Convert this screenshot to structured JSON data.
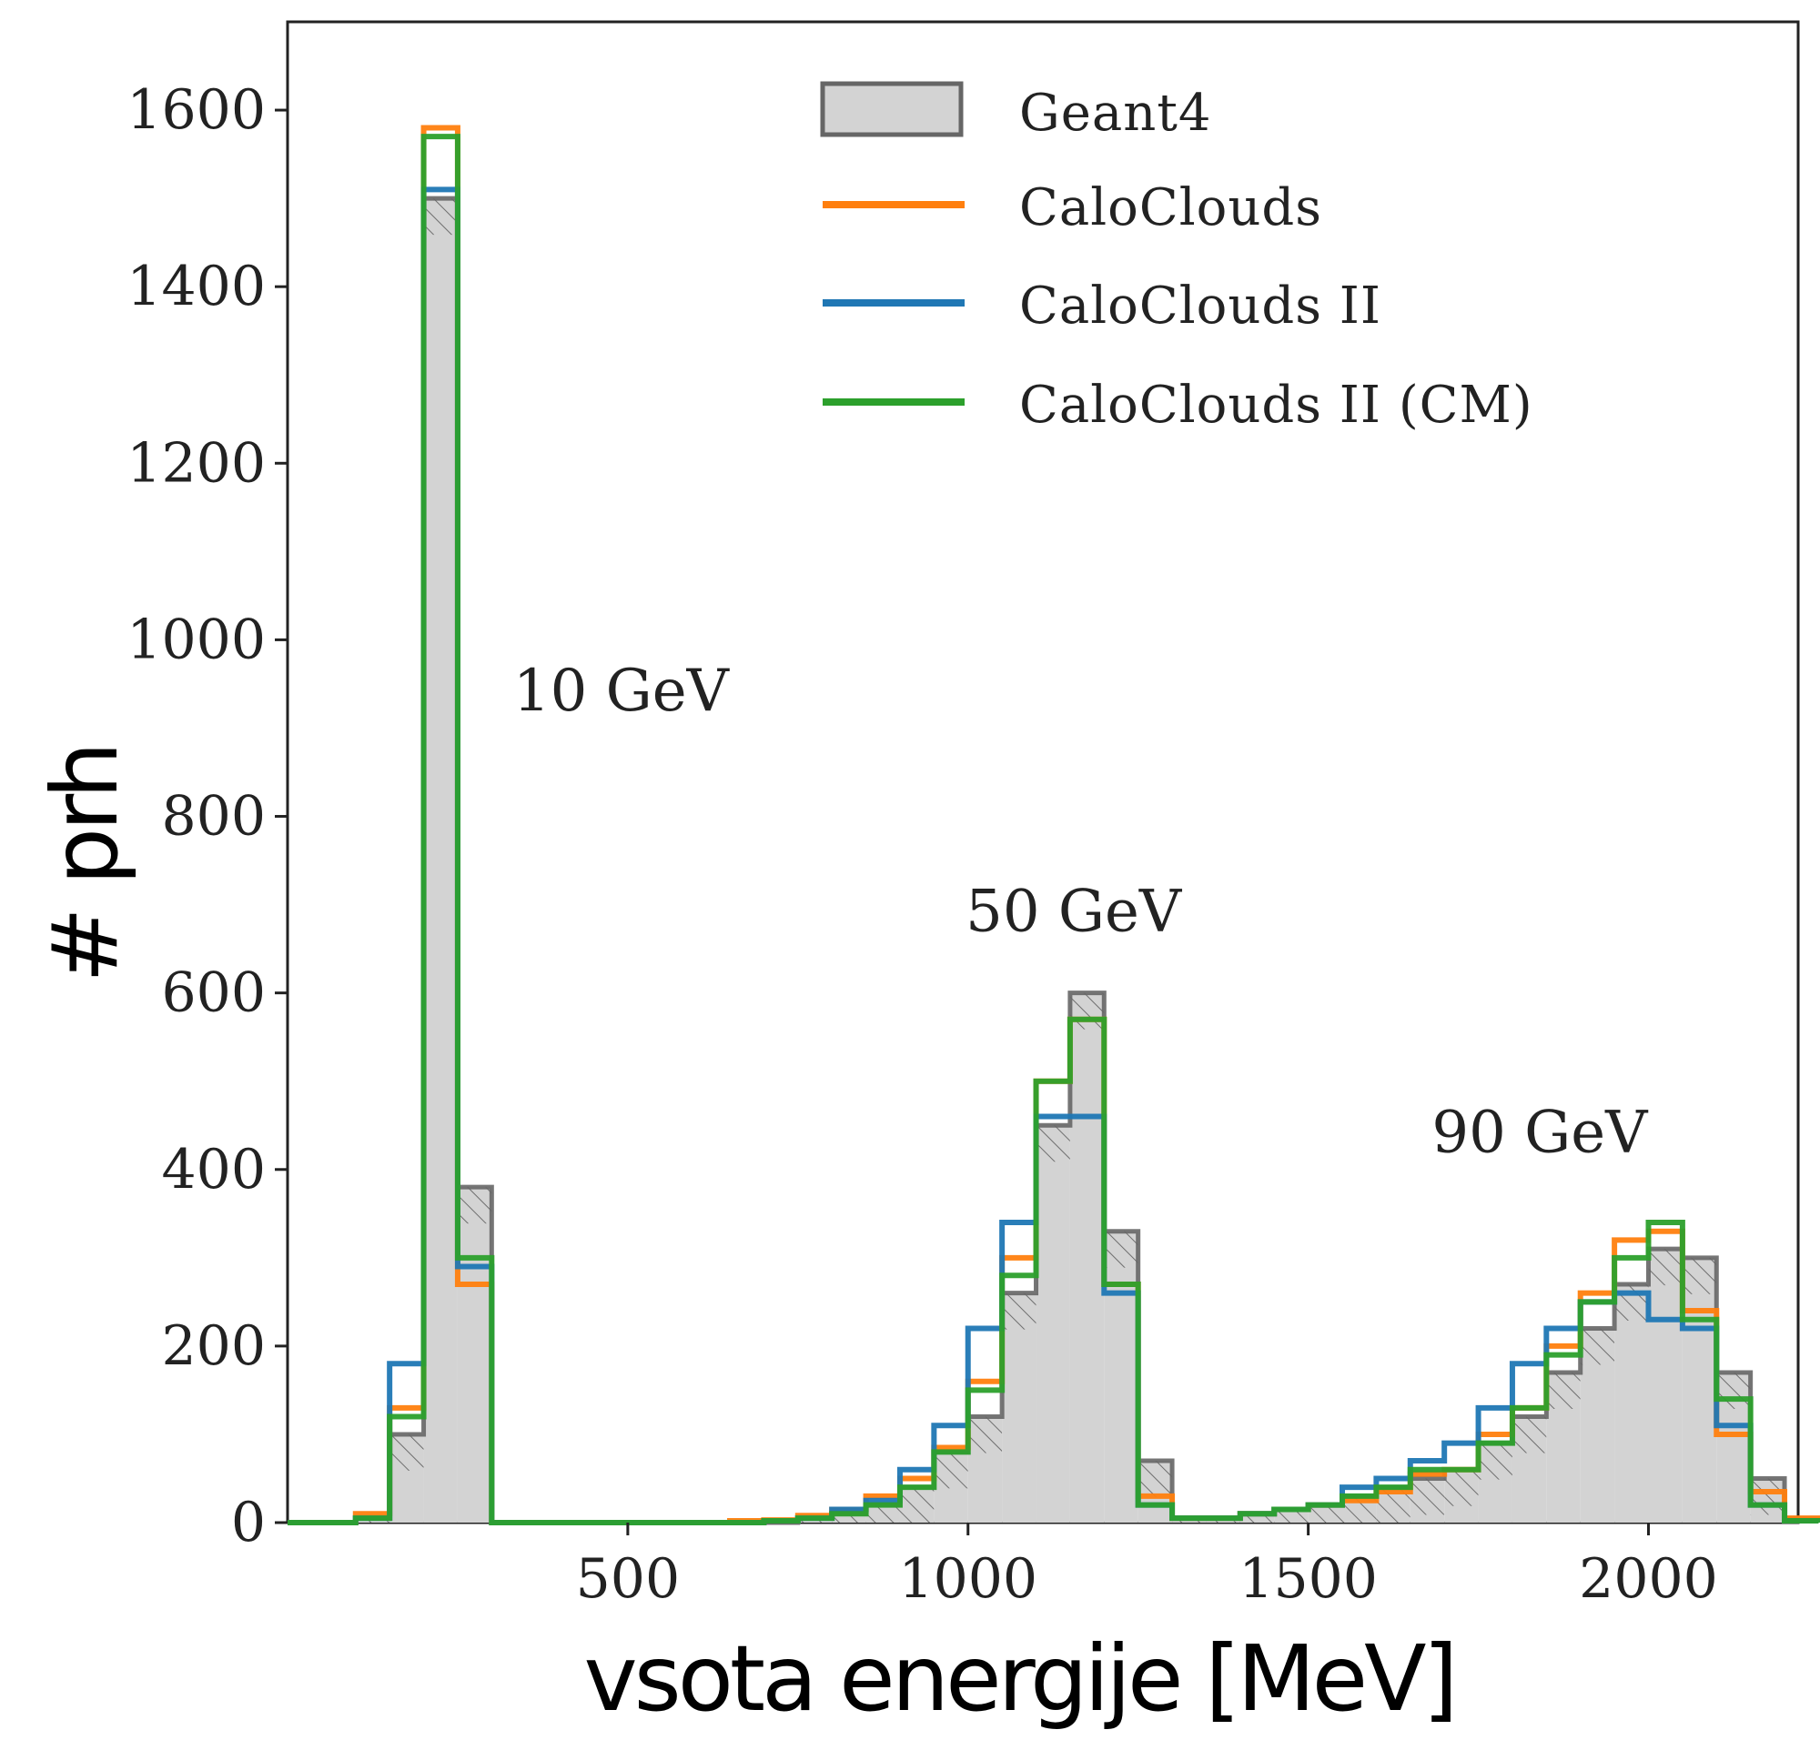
{
  "chart_data": {
    "type": "histogram",
    "xlabel": "vsota energije [MeV]",
    "ylabel": "# prh",
    "xlim": [
      0,
      2220
    ],
    "ylim": [
      0,
      1700
    ],
    "xticks": [
      500,
      1000,
      1500,
      2000
    ],
    "yticks": [
      0,
      200,
      400,
      600,
      800,
      1000,
      1200,
      1400,
      1600
    ],
    "grid": false,
    "legend_position": "top-right",
    "bin_width": 50,
    "bin_start": 0,
    "annotations": [
      {
        "text": "10 GeV",
        "x": 490,
        "y": 920
      },
      {
        "text": "50 GeV",
        "x": 1155,
        "y": 670
      },
      {
        "text": "90 GeV",
        "x": 1840,
        "y": 420
      }
    ],
    "series": [
      {
        "name": "Geant4",
        "style": "filled-hatched",
        "color": "#666666",
        "fill": "#d3d3d3",
        "values": [
          0,
          0,
          5,
          100,
          1500,
          380,
          0,
          0,
          0,
          0,
          0,
          0,
          0,
          0,
          0,
          5,
          10,
          20,
          40,
          80,
          120,
          260,
          450,
          600,
          330,
          70,
          5,
          5,
          10,
          15,
          20,
          30,
          40,
          50,
          60,
          90,
          120,
          170,
          220,
          270,
          310,
          300,
          170,
          50,
          5
        ]
      },
      {
        "name": "CaloClouds",
        "style": "step",
        "color": "#ff7f0e",
        "values": [
          0,
          0,
          10,
          130,
          1580,
          270,
          0,
          0,
          0,
          0,
          0,
          0,
          0,
          2,
          3,
          8,
          15,
          30,
          50,
          85,
          160,
          300,
          500,
          570,
          270,
          30,
          5,
          5,
          10,
          15,
          20,
          25,
          35,
          55,
          60,
          100,
          130,
          200,
          260,
          320,
          330,
          240,
          100,
          35,
          5
        ]
      },
      {
        "name": "CaloClouds II",
        "style": "step",
        "color": "#1f77b4",
        "values": [
          0,
          0,
          5,
          180,
          1510,
          290,
          0,
          0,
          0,
          0,
          0,
          0,
          0,
          0,
          2,
          5,
          15,
          25,
          60,
          110,
          220,
          340,
          460,
          460,
          260,
          20,
          5,
          5,
          10,
          15,
          20,
          40,
          50,
          70,
          90,
          130,
          180,
          220,
          250,
          260,
          230,
          220,
          110,
          20,
          2
        ]
      },
      {
        "name": "CaloClouds II (CM)",
        "style": "step",
        "color": "#2ca02c",
        "values": [
          0,
          0,
          5,
          120,
          1570,
          300,
          0,
          0,
          0,
          0,
          0,
          0,
          0,
          0,
          2,
          5,
          10,
          20,
          40,
          80,
          150,
          280,
          500,
          570,
          270,
          20,
          5,
          5,
          10,
          15,
          20,
          30,
          40,
          60,
          60,
          90,
          130,
          190,
          250,
          300,
          340,
          230,
          140,
          20,
          2
        ]
      }
    ]
  },
  "legend_patch_icon": "hatched-gray-rectangle"
}
